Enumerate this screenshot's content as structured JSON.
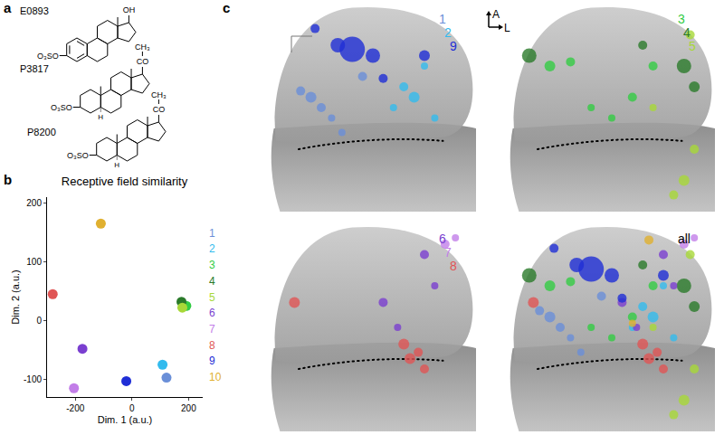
{
  "panel_labels": [
    "a",
    "b",
    "c"
  ],
  "structures": [
    {
      "name": "E0893",
      "aromatic": true,
      "sulfate": "O₃SO",
      "c17": [
        "OH"
      ]
    },
    {
      "name": "P3817",
      "aromatic": false,
      "sulfate": "O₃SO",
      "c17": [
        "CO",
        "CH₃"
      ],
      "h5": "H"
    },
    {
      "name": "P8200",
      "aromatic": false,
      "sulfate": "O₃SO",
      "c17": [
        "CO",
        "CH₃"
      ],
      "h5": "H"
    }
  ],
  "chart_data": {
    "type": "scatter",
    "title": "Receptive field similarity",
    "xlabel": "Dim. 1 (a.u.)",
    "ylabel": "Dim. 2 (a.u.)",
    "xlim": [
      -300,
      250
    ],
    "xticks": [
      -200,
      0,
      200
    ],
    "ylim": [
      -130,
      210
    ],
    "yticks": [
      -100,
      0,
      100,
      200
    ],
    "grid": false,
    "legend": "right",
    "series": [
      {
        "name": "1",
        "color": "#6a8fd8",
        "x": [
          122
        ],
        "y": [
          -97
        ]
      },
      {
        "name": "2",
        "color": "#33bbee",
        "x": [
          108
        ],
        "y": [
          -75
        ]
      },
      {
        "name": "3",
        "color": "#33cc44",
        "x": [
          192
        ],
        "y": [
          25
        ]
      },
      {
        "name": "4",
        "color": "#2a7a2a",
        "x": [
          175
        ],
        "y": [
          32
        ]
      },
      {
        "name": "5",
        "color": "#a8d838",
        "x": [
          178
        ],
        "y": [
          22
        ]
      },
      {
        "name": "6",
        "color": "#7a3fd0",
        "x": [
          -175
        ],
        "y": [
          -48
        ]
      },
      {
        "name": "7",
        "color": "#c27ee8",
        "x": [
          -205
        ],
        "y": [
          -115
        ]
      },
      {
        "name": "8",
        "color": "#e05555",
        "x": [
          -280
        ],
        "y": [
          45
        ]
      },
      {
        "name": "9",
        "color": "#1f2ed6",
        "x": [
          -20
        ],
        "y": [
          -103
        ]
      },
      {
        "name": "10",
        "color": "#e0b030",
        "x": [
          -110
        ],
        "y": [
          165
        ]
      }
    ]
  },
  "images": {
    "axes": {
      "up": "A",
      "right": "L"
    },
    "views": [
      {
        "labels": [
          "1",
          "2",
          "9"
        ]
      },
      {
        "labels": [
          "3",
          "4",
          "5"
        ]
      },
      {
        "labels": [
          "6",
          "7",
          "8"
        ]
      },
      {
        "labels": [
          "all"
        ]
      }
    ]
  }
}
